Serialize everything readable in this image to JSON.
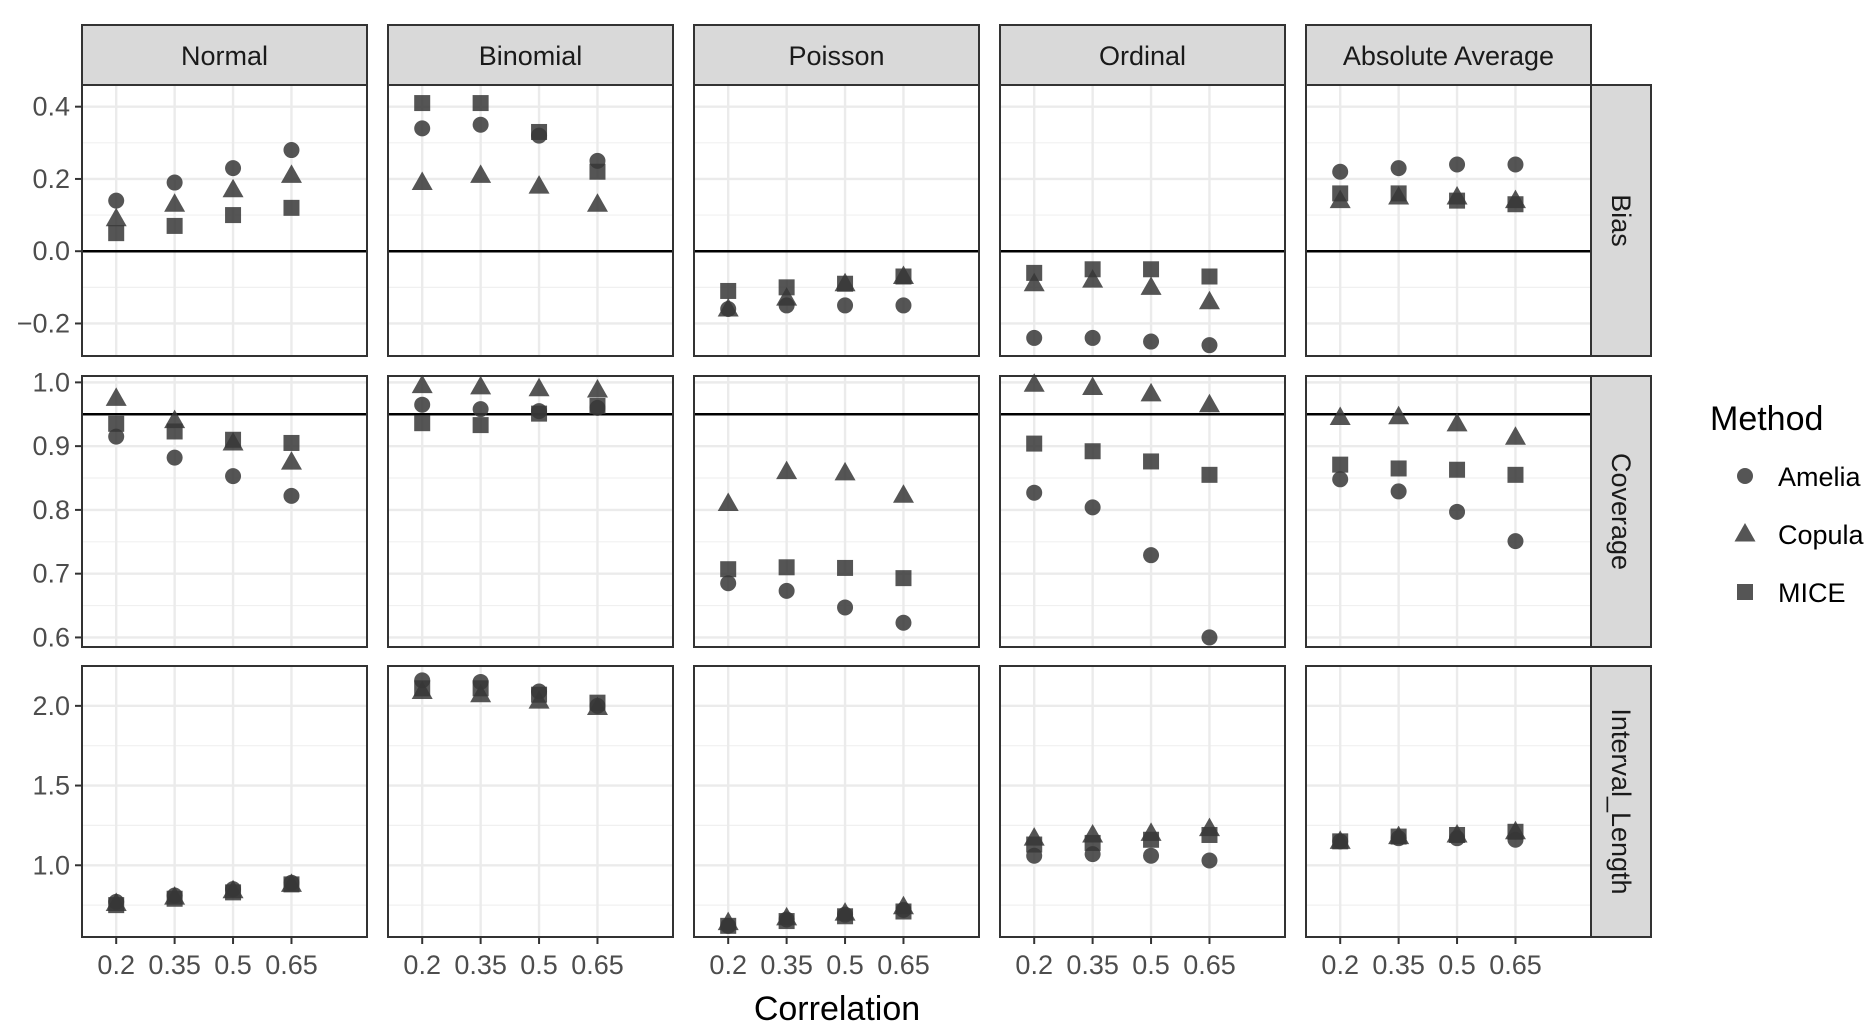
{
  "chart_data": {
    "type": "scatter",
    "xlabel": "Correlation",
    "x_categories": [
      "0.2",
      "0.35",
      "0.5",
      "0.65"
    ],
    "columns": [
      "Normal",
      "Binomial",
      "Poisson",
      "Ordinal",
      "Absolute Average"
    ],
    "rows": [
      {
        "name": "Bias",
        "ylim": [
          -0.29,
          0.46
        ],
        "ticks": [
          -0.2,
          0.0,
          0.2,
          0.4
        ],
        "tick_labels": [
          "−0.2",
          "0.0",
          "0.2",
          "0.4"
        ],
        "reference_line": 0.0
      },
      {
        "name": "Coverage",
        "ylim": [
          0.585,
          1.01
        ],
        "ticks": [
          0.6,
          0.7,
          0.8,
          0.9,
          1.0
        ],
        "tick_labels": [
          "0.6",
          "0.7",
          "0.8",
          "0.9",
          "1.0"
        ],
        "reference_line": 0.95
      },
      {
        "name": "Interval_Length",
        "ylim": [
          0.55,
          2.25
        ],
        "ticks": [
          1.0,
          1.5,
          2.0
        ],
        "tick_labels": [
          "1.0",
          "1.5",
          "2.0"
        ],
        "reference_line": null
      }
    ],
    "legend": {
      "title": "Method",
      "position": "right"
    },
    "grid": true,
    "series": [
      {
        "name": "Amelia",
        "shape": "circle",
        "values": {
          "Bias": {
            "Normal": [
              0.14,
              0.19,
              0.23,
              0.28
            ],
            "Binomial": [
              0.34,
              0.35,
              0.32,
              0.25
            ],
            "Poisson": [
              -0.16,
              -0.15,
              -0.15,
              -0.15
            ],
            "Ordinal": [
              -0.24,
              -0.24,
              -0.25,
              -0.26
            ],
            "Absolute Average": [
              0.22,
              0.23,
              0.24,
              0.24
            ]
          },
          "Coverage": {
            "Normal": [
              0.915,
              0.882,
              0.853,
              0.822
            ],
            "Binomial": [
              0.965,
              0.958,
              0.955,
              0.96
            ],
            "Poisson": [
              0.685,
              0.673,
              0.647,
              0.623
            ],
            "Ordinal": [
              0.827,
              0.804,
              0.729,
              0.6
            ],
            "Absolute Average": [
              0.848,
              0.829,
              0.797,
              0.751
            ]
          },
          "Interval_Length": {
            "Normal": [
              0.77,
              0.81,
              0.85,
              0.89
            ],
            "Binomial": [
              2.16,
              2.15,
              2.09,
              2.0
            ],
            "Poisson": [
              0.62,
              0.66,
              0.69,
              0.72
            ],
            "Ordinal": [
              1.06,
              1.07,
              1.06,
              1.03
            ],
            "Absolute Average": [
              1.15,
              1.17,
              1.17,
              1.16
            ]
          }
        }
      },
      {
        "name": "Copula",
        "shape": "triangle",
        "values": {
          "Bias": {
            "Normal": [
              0.09,
              0.13,
              0.17,
              0.21
            ],
            "Binomial": [
              0.19,
              0.21,
              0.18,
              0.13
            ],
            "Poisson": [
              -0.16,
              -0.13,
              -0.09,
              -0.07
            ],
            "Ordinal": [
              -0.09,
              -0.08,
              -0.1,
              -0.14
            ],
            "Absolute Average": [
              0.14,
              0.15,
              0.15,
              0.14
            ]
          },
          "Coverage": {
            "Normal": [
              0.975,
              0.94,
              0.905,
              0.875
            ],
            "Binomial": [
              0.995,
              0.993,
              0.99,
              0.988
            ],
            "Poisson": [
              0.81,
              0.86,
              0.858,
              0.823
            ],
            "Ordinal": [
              0.997,
              0.992,
              0.982,
              0.965
            ],
            "Absolute Average": [
              0.945,
              0.946,
              0.935,
              0.914
            ]
          },
          "Interval_Length": {
            "Normal": [
              0.76,
              0.8,
              0.84,
              0.88
            ],
            "Binomial": [
              2.09,
              2.07,
              2.03,
              1.99
            ],
            "Poisson": [
              0.64,
              0.67,
              0.7,
              0.74
            ],
            "Ordinal": [
              1.17,
              1.19,
              1.2,
              1.23
            ],
            "Absolute Average": [
              1.15,
              1.18,
              1.19,
              1.21
            ]
          }
        }
      },
      {
        "name": "MICE",
        "shape": "square",
        "values": {
          "Bias": {
            "Normal": [
              0.05,
              0.07,
              0.1,
              0.12
            ],
            "Binomial": [
              0.41,
              0.41,
              0.33,
              0.22
            ],
            "Poisson": [
              -0.11,
              -0.1,
              -0.09,
              -0.07
            ],
            "Ordinal": [
              -0.06,
              -0.05,
              -0.05,
              -0.07
            ],
            "Absolute Average": [
              0.16,
              0.16,
              0.14,
              0.13
            ]
          },
          "Coverage": {
            "Normal": [
              0.935,
              0.923,
              0.91,
              0.905
            ],
            "Binomial": [
              0.936,
              0.933,
              0.951,
              0.963
            ],
            "Poisson": [
              0.707,
              0.71,
              0.709,
              0.693
            ],
            "Ordinal": [
              0.904,
              0.892,
              0.876,
              0.855
            ],
            "Absolute Average": [
              0.871,
              0.865,
              0.863,
              0.855
            ]
          },
          "Interval_Length": {
            "Normal": [
              0.75,
              0.79,
              0.83,
              0.88
            ],
            "Binomial": [
              2.11,
              2.11,
              2.07,
              2.02
            ],
            "Poisson": [
              0.62,
              0.65,
              0.68,
              0.71
            ],
            "Ordinal": [
              1.13,
              1.14,
              1.16,
              1.19
            ],
            "Absolute Average": [
              1.15,
              1.18,
              1.19,
              1.21
            ]
          }
        }
      }
    ]
  }
}
